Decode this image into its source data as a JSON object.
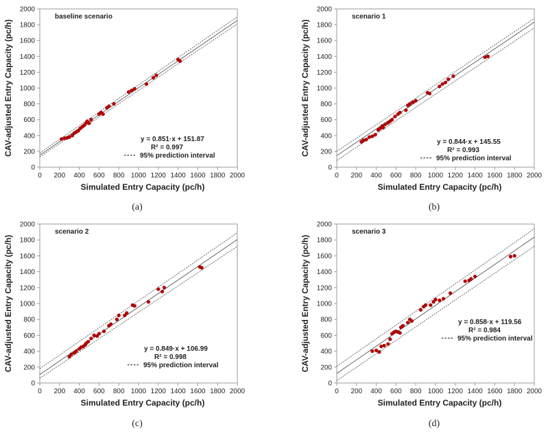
{
  "chart_data": [
    {
      "type": "scatter",
      "panel_label": "(a)",
      "title": "baseline scenario",
      "xlabel": "Simulated Entry Capacity (pc/h)",
      "ylabel": "CAV-adjusted Entry Capacity (pc/h)",
      "xlim": [
        0,
        2000
      ],
      "ylim": [
        0,
        2000
      ],
      "xticks": [
        "0",
        "200",
        "400",
        "600",
        "800",
        "1000",
        "1200",
        "1400",
        "1600",
        "1800",
        "2000"
      ],
      "yticks": [
        "0",
        "200",
        "400",
        "600",
        "800",
        "1000",
        "1200",
        "1400",
        "1600",
        "1800",
        "2000"
      ],
      "equation": "y = 0.851·x + 151.87",
      "r_squared": "R² = 0.997",
      "legend": "95% prediction interval",
      "fit": {
        "slope": 0.851,
        "intercept": 151.87
      },
      "pi_lines": {
        "upper": [
          [
            0,
            180
          ],
          [
            2000,
            1900
          ]
        ],
        "lower": [
          [
            0,
            130
          ],
          [
            2000,
            1810
          ]
        ]
      },
      "points": [
        [
          220,
          355
        ],
        [
          250,
          365
        ],
        [
          275,
          370
        ],
        [
          300,
          380
        ],
        [
          330,
          400
        ],
        [
          350,
          430
        ],
        [
          370,
          445
        ],
        [
          390,
          460
        ],
        [
          410,
          490
        ],
        [
          430,
          510
        ],
        [
          450,
          530
        ],
        [
          470,
          560
        ],
        [
          480,
          580
        ],
        [
          500,
          555
        ],
        [
          520,
          600
        ],
        [
          600,
          670
        ],
        [
          620,
          690
        ],
        [
          640,
          670
        ],
        [
          680,
          750
        ],
        [
          700,
          770
        ],
        [
          750,
          800
        ],
        [
          900,
          950
        ],
        [
          930,
          970
        ],
        [
          960,
          990
        ],
        [
          1080,
          1050
        ],
        [
          1150,
          1130
        ],
        [
          1180,
          1160
        ],
        [
          1400,
          1360
        ],
        [
          1420,
          1340
        ]
      ]
    },
    {
      "type": "scatter",
      "panel_label": "(b)",
      "title": "scenario 1",
      "xlabel": "Simulated Entry Capacity (pc/h)",
      "ylabel": "CAV-adjusted Entry Capacity (pc/h)",
      "xlim": [
        0,
        2000
      ],
      "ylim": [
        0,
        2000
      ],
      "xticks": [
        "0",
        "200",
        "400",
        "600",
        "800",
        "1000",
        "1200",
        "1400",
        "1600",
        "1800",
        "2000"
      ],
      "yticks": [
        "0",
        "200",
        "400",
        "600",
        "800",
        "1000",
        "1200",
        "1400",
        "1600",
        "1800",
        "2000"
      ],
      "equation": "y = 0.844·x + 145.55",
      "r_squared": "R² = 0.993",
      "legend": "95% prediction interval",
      "fit": {
        "slope": 0.844,
        "intercept": 145.55
      },
      "pi_lines": {
        "upper": [
          [
            0,
            200
          ],
          [
            2000,
            1880
          ]
        ],
        "lower": [
          [
            0,
            85
          ],
          [
            2000,
            1760
          ]
        ]
      },
      "points": [
        [
          250,
          320
        ],
        [
          270,
          340
        ],
        [
          300,
          350
        ],
        [
          330,
          380
        ],
        [
          360,
          390
        ],
        [
          390,
          410
        ],
        [
          420,
          470
        ],
        [
          440,
          490
        ],
        [
          460,
          520
        ],
        [
          470,
          500
        ],
        [
          490,
          540
        ],
        [
          520,
          560
        ],
        [
          540,
          580
        ],
        [
          560,
          600
        ],
        [
          590,
          640
        ],
        [
          620,
          670
        ],
        [
          640,
          690
        ],
        [
          700,
          720
        ],
        [
          720,
          780
        ],
        [
          740,
          800
        ],
        [
          770,
          820
        ],
        [
          800,
          840
        ],
        [
          920,
          940
        ],
        [
          940,
          930
        ],
        [
          1040,
          1020
        ],
        [
          1070,
          1050
        ],
        [
          1100,
          1070
        ],
        [
          1130,
          1110
        ],
        [
          1180,
          1150
        ],
        [
          1500,
          1390
        ],
        [
          1530,
          1400
        ]
      ]
    },
    {
      "type": "scatter",
      "panel_label": "(c)",
      "title": "scenario 2",
      "xlabel": "Simulated Entry Capacity (pc/h)",
      "ylabel": "CAV-adjusted Entry Capacity (pc/h)",
      "xlim": [
        0,
        2000
      ],
      "ylim": [
        0,
        2000
      ],
      "xticks": [
        "0",
        "200",
        "400",
        "600",
        "800",
        "1000",
        "1200",
        "1400",
        "1600",
        "1800",
        "2000"
      ],
      "yticks": [
        "0",
        "200",
        "400",
        "600",
        "800",
        "1000",
        "1200",
        "1400",
        "1600",
        "1800",
        "2000"
      ],
      "equation": "y = 0.849·x + 106.99",
      "r_squared": "R² = 0.998",
      "legend": "95% prediction interval",
      "fit": {
        "slope": 0.849,
        "intercept": 106.99
      },
      "pi_lines": {
        "upper": [
          [
            0,
            180
          ],
          [
            2000,
            1890
          ]
        ],
        "lower": [
          [
            0,
            60
          ],
          [
            2000,
            1720
          ]
        ]
      },
      "points": [
        [
          300,
          330
        ],
        [
          320,
          360
        ],
        [
          350,
          380
        ],
        [
          370,
          400
        ],
        [
          400,
          430
        ],
        [
          420,
          450
        ],
        [
          440,
          460
        ],
        [
          460,
          480
        ],
        [
          470,
          500
        ],
        [
          490,
          520
        ],
        [
          520,
          560
        ],
        [
          550,
          600
        ],
        [
          580,
          590
        ],
        [
          600,
          620
        ],
        [
          650,
          650
        ],
        [
          700,
          720
        ],
        [
          720,
          740
        ],
        [
          780,
          800
        ],
        [
          800,
          850
        ],
        [
          860,
          850
        ],
        [
          880,
          880
        ],
        [
          940,
          980
        ],
        [
          960,
          970
        ],
        [
          1100,
          1020
        ],
        [
          1200,
          1180
        ],
        [
          1240,
          1150
        ],
        [
          1260,
          1200
        ],
        [
          1620,
          1460
        ],
        [
          1640,
          1450
        ]
      ]
    },
    {
      "type": "scatter",
      "panel_label": "(d)",
      "title": "scenario 3",
      "xlabel": "Simulated Entry Capacity (pc/h)",
      "ylabel": "CAV-adjusted Entry Capacity (pc/h)",
      "xlim": [
        0,
        2000
      ],
      "ylim": [
        0,
        2000
      ],
      "xticks": [
        "0",
        "200",
        "400",
        "600",
        "800",
        "1000",
        "1200",
        "1400",
        "1600",
        "1800",
        "2000"
      ],
      "yticks": [
        "0",
        "200",
        "400",
        "600",
        "800",
        "1000",
        "1200",
        "1400",
        "1600",
        "1800",
        "2000"
      ],
      "equation": "y = 0.858·x + 119.56",
      "r_squared": "R² = 0.984",
      "legend": "95% prediction interval",
      "fit": {
        "slope": 0.858,
        "intercept": 119.56
      },
      "pi_lines": {
        "upper": [
          [
            0,
            210
          ],
          [
            2000,
            1940
          ]
        ],
        "lower": [
          [
            0,
            30
          ],
          [
            2000,
            1720
          ]
        ]
      },
      "points": [
        [
          360,
          400
        ],
        [
          400,
          410
        ],
        [
          430,
          390
        ],
        [
          450,
          460
        ],
        [
          480,
          470
        ],
        [
          520,
          490
        ],
        [
          540,
          550
        ],
        [
          560,
          620
        ],
        [
          580,
          640
        ],
        [
          600,
          650
        ],
        [
          620,
          640
        ],
        [
          640,
          630
        ],
        [
          650,
          700
        ],
        [
          670,
          720
        ],
        [
          720,
          760
        ],
        [
          740,
          800
        ],
        [
          760,
          780
        ],
        [
          850,
          920
        ],
        [
          880,
          960
        ],
        [
          900,
          980
        ],
        [
          950,
          980
        ],
        [
          980,
          1020
        ],
        [
          1000,
          1050
        ],
        [
          1040,
          1040
        ],
        [
          1080,
          1060
        ],
        [
          1150,
          1130
        ],
        [
          1300,
          1280
        ],
        [
          1340,
          1290
        ],
        [
          1360,
          1310
        ],
        [
          1400,
          1340
        ],
        [
          1760,
          1590
        ],
        [
          1800,
          1600
        ]
      ]
    }
  ]
}
